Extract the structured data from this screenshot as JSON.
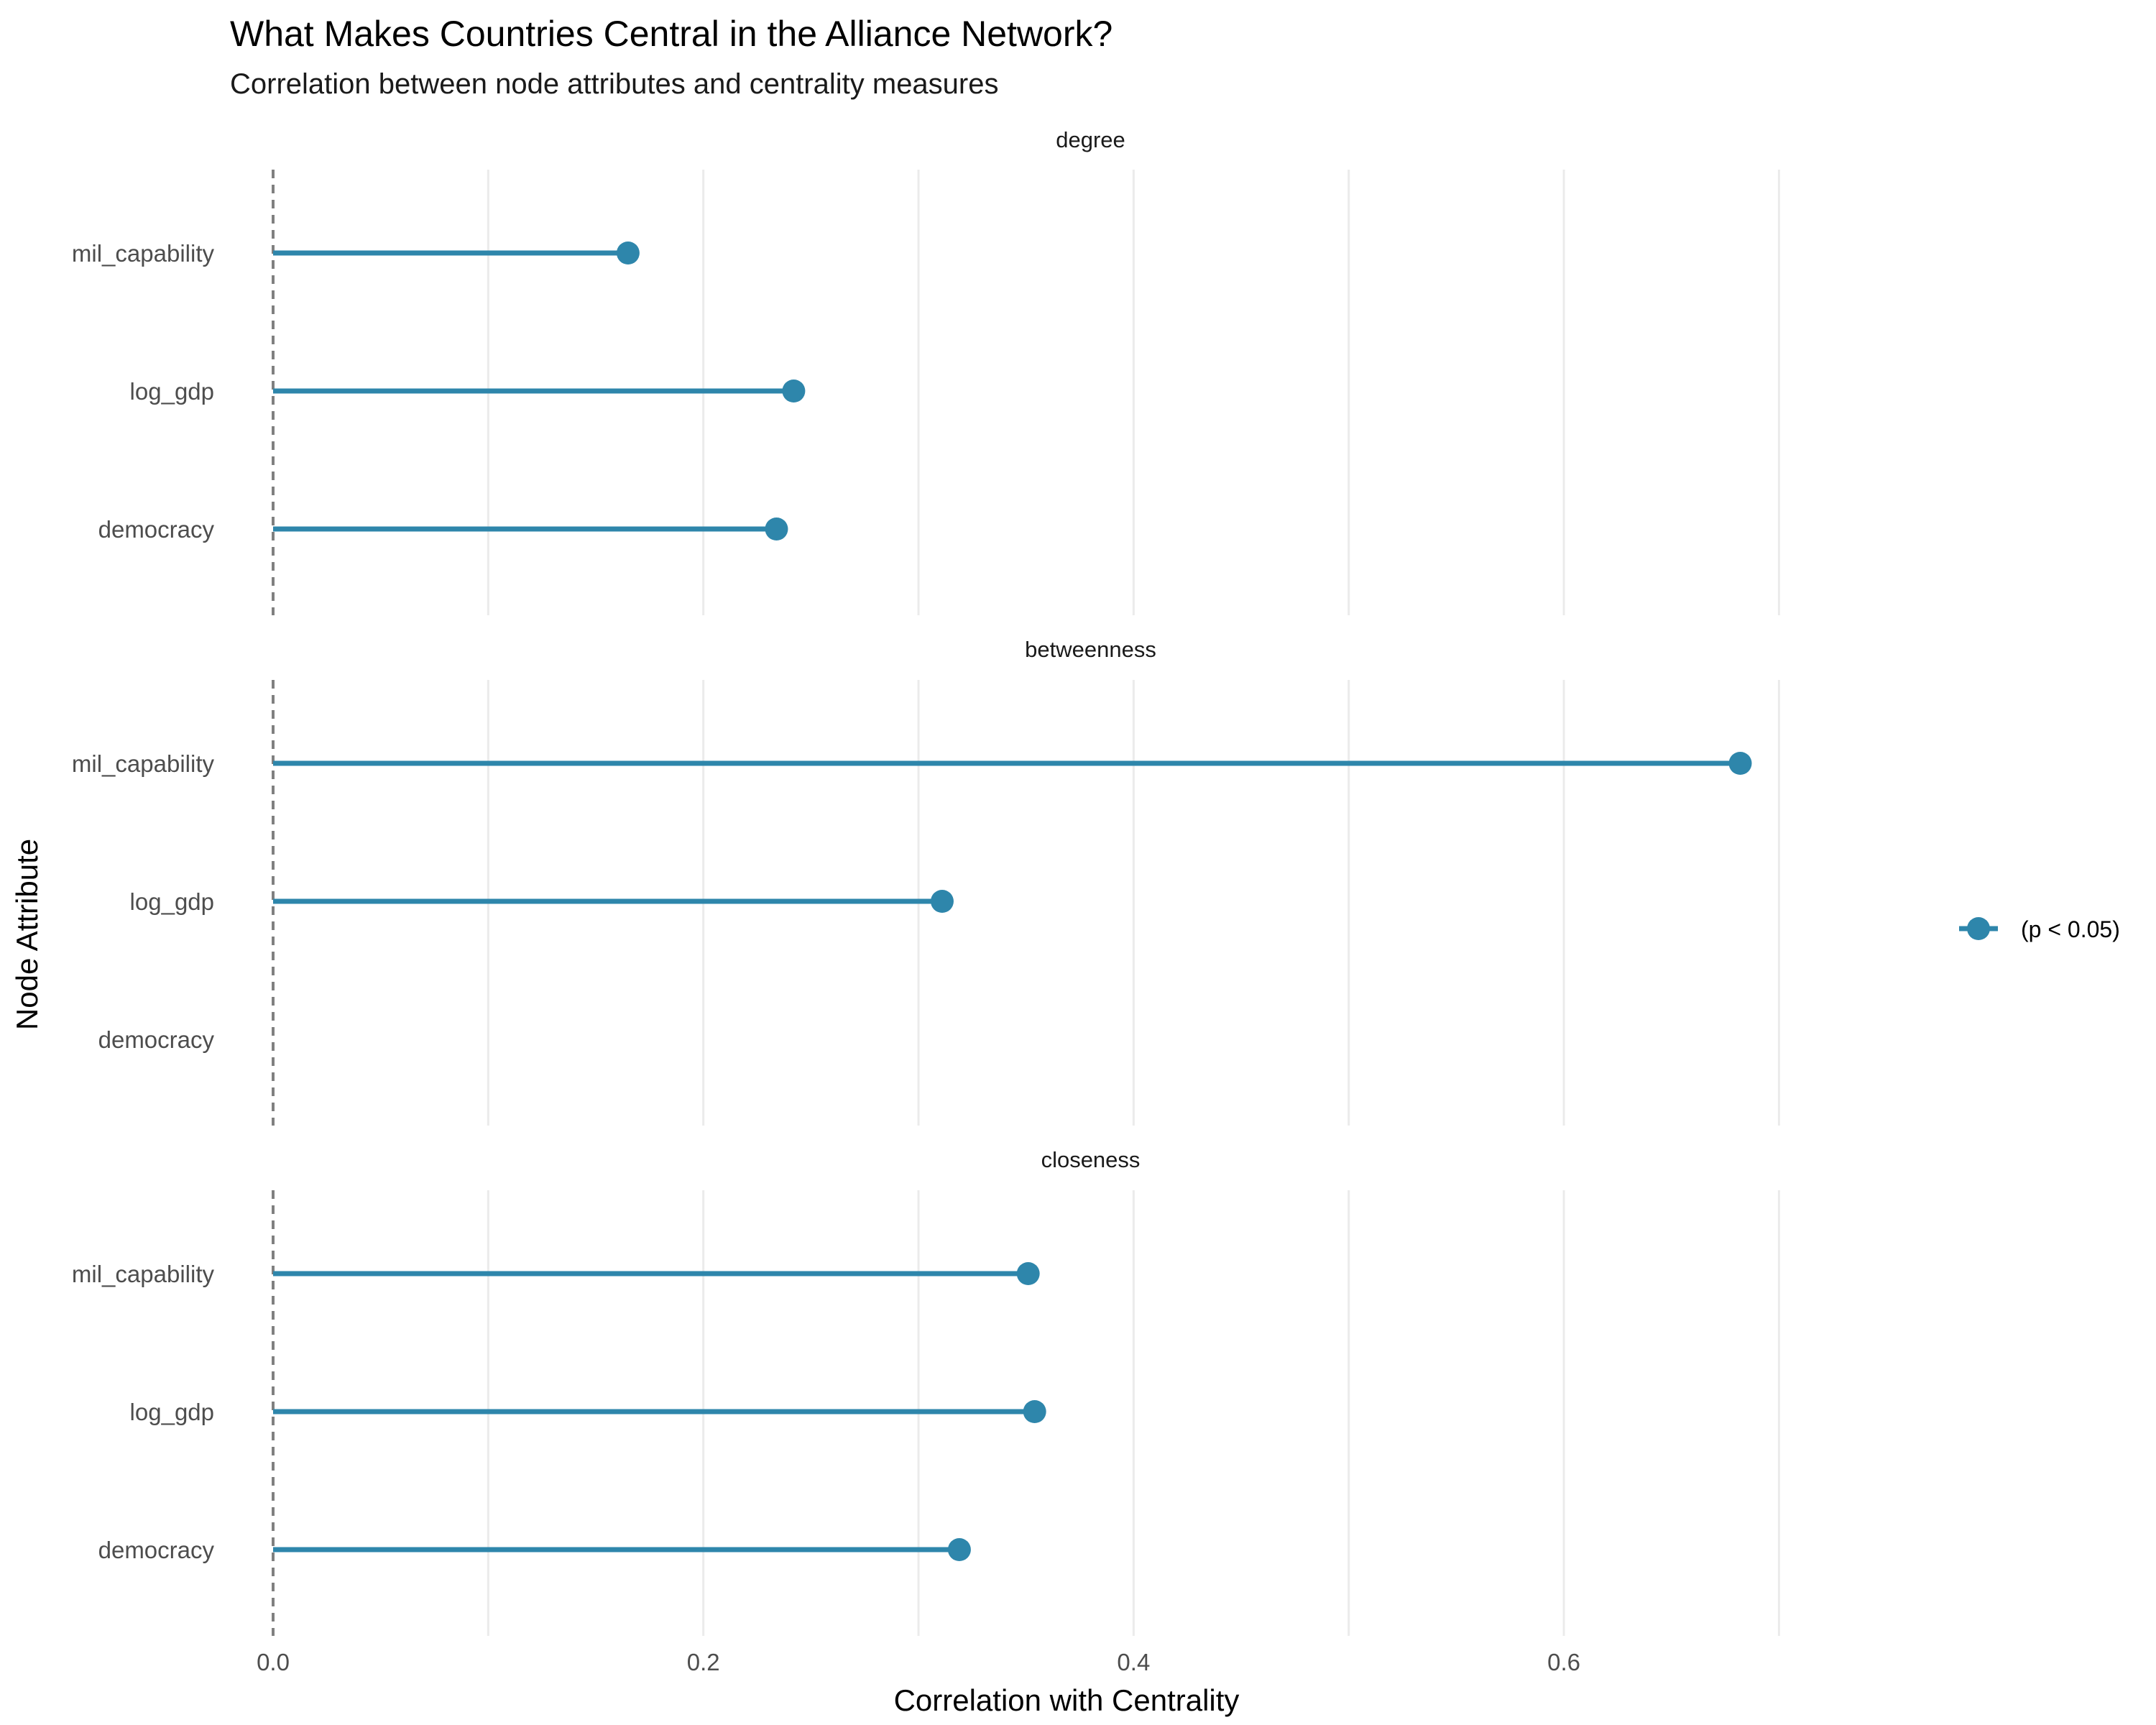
{
  "chart_data": {
    "type": "lollipop",
    "title": "What Makes Countries Central in the Alliance Network?",
    "subtitle": "Correlation between node attributes and centrality measures",
    "xlabel": "Correlation with Centrality",
    "ylabel": "Node Attribute",
    "xlim": [
      0,
      0.76
    ],
    "x_ticks": [
      "0.0",
      "0.2",
      "0.4",
      "0.6"
    ],
    "x_tick_values": [
      0,
      0.2,
      0.4,
      0.6
    ],
    "reference_line": 0,
    "grid": true,
    "categories": [
      "mil_capability",
      "log_gdp",
      "democracy"
    ],
    "facets": [
      {
        "name": "degree",
        "values": [
          0.165,
          0.242,
          0.234
        ]
      },
      {
        "name": "betweenness",
        "values": [
          0.682,
          0.311,
          null
        ]
      },
      {
        "name": "closeness",
        "values": [
          0.351,
          0.354,
          0.319
        ]
      }
    ],
    "legend": {
      "position": "right",
      "label": "(p < 0.05)"
    },
    "colors": {
      "series": "#2e86ab",
      "reference": "#808080",
      "grid": "#ebebeb"
    }
  }
}
